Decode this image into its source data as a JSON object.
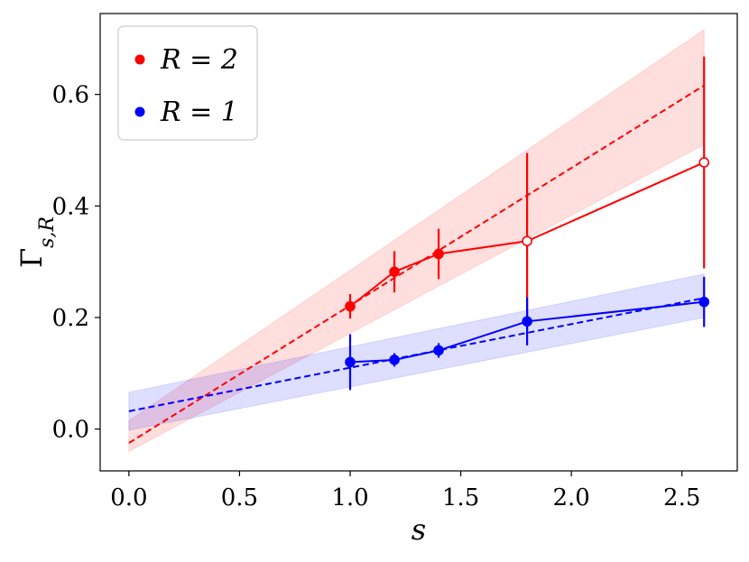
{
  "chart_data": {
    "type": "line",
    "xlabel": "s",
    "ylabel": "Γ_{s,R}",
    "xlim": [
      -0.13,
      2.75
    ],
    "ylim": [
      -0.075,
      0.745
    ],
    "xticks": [
      "0.0",
      "0.5",
      "1.0",
      "1.5",
      "2.0",
      "2.5"
    ],
    "yticks": [
      "0.0",
      "0.2",
      "0.4",
      "0.6"
    ],
    "legend_position": "top-left",
    "grid": false,
    "series": [
      {
        "name": "R = 2",
        "color": "#ff0000",
        "points": [
          {
            "x": 1.0,
            "y": 0.22,
            "err": 0.022,
            "filled": true
          },
          {
            "x": 1.2,
            "y": 0.282,
            "err": 0.037,
            "filled": true
          },
          {
            "x": 1.4,
            "y": 0.314,
            "err": 0.045,
            "filled": true
          },
          {
            "x": 1.8,
            "y": 0.337,
            "err": 0.158,
            "filled": false
          },
          {
            "x": 2.6,
            "y": 0.478,
            "err": 0.19,
            "filled": false
          }
        ],
        "fit": {
          "x": [
            0.0,
            2.6
          ],
          "y": [
            -0.025,
            0.616
          ]
        },
        "band": {
          "x": [
            0.0,
            2.6
          ],
          "lower": [
            -0.04,
            0.51
          ],
          "upper": [
            0.015,
            0.716
          ]
        }
      },
      {
        "name": "R = 1",
        "color": "#0000ff",
        "points": [
          {
            "x": 1.0,
            "y": 0.12,
            "err": 0.05,
            "filled": true
          },
          {
            "x": 1.2,
            "y": 0.124,
            "err": 0.012,
            "filled": true
          },
          {
            "x": 1.4,
            "y": 0.141,
            "err": 0.013,
            "filled": true
          },
          {
            "x": 1.8,
            "y": 0.193,
            "err": 0.043,
            "filled": true
          },
          {
            "x": 2.6,
            "y": 0.228,
            "err": 0.045,
            "filled": true
          }
        ],
        "fit": {
          "x": [
            0.0,
            2.6
          ],
          "y": [
            0.032,
            0.235
          ]
        },
        "band": {
          "x": [
            0.0,
            2.6
          ],
          "lower": [
            -0.002,
            0.2
          ],
          "upper": [
            0.066,
            0.278
          ]
        }
      }
    ]
  }
}
